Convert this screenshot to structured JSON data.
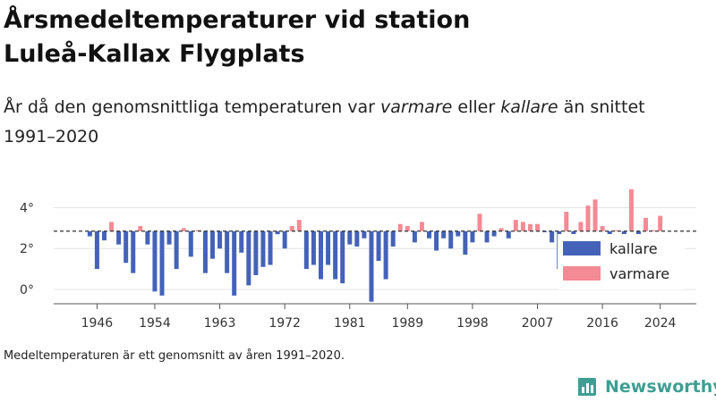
{
  "title_line1": "Årsmedeltemperaturer vid station",
  "title_line2": "Luleå-Kallax Flygplats",
  "subtitle": {
    "part1": "År då den genomsnittliga temperaturen var ",
    "em1": "varmare",
    "part2": " eller ",
    "em2": "kallare",
    "part3": " än snittet 1991–2020"
  },
  "footnote": "Medeltemperaturen är ett genomsnitt av åren 1991–2020.",
  "brand": {
    "name": "Newsworthy",
    "icon": "bar-chart-logo-icon",
    "color": "#3f9e94"
  },
  "colors": {
    "kallare": "#4462b8",
    "varmare": "#f38a94",
    "baseline": "#333333",
    "grid": "#e4e4e4"
  },
  "chart_data": {
    "type": "bar",
    "baseline": 2.85,
    "ylim": [
      -0.7,
      5.2
    ],
    "xlim": [
      1940,
      2029
    ],
    "yticks": [
      {
        "value": 0,
        "label": "0°"
      },
      {
        "value": 2,
        "label": "2°"
      },
      {
        "value": 4,
        "label": "4°"
      }
    ],
    "xticks": [
      1946,
      1954,
      1963,
      1972,
      1981,
      1989,
      1998,
      2007,
      2016,
      2024
    ],
    "grid": true,
    "legend": {
      "position": "bottom-right",
      "entries": [
        {
          "key": "kallare",
          "label": "kallare"
        },
        {
          "key": "varmare",
          "label": "varmare"
        }
      ]
    },
    "years": [
      1945,
      1946,
      1947,
      1948,
      1949,
      1950,
      1951,
      1952,
      1953,
      1954,
      1955,
      1956,
      1957,
      1958,
      1959,
      1960,
      1961,
      1962,
      1963,
      1964,
      1965,
      1966,
      1967,
      1968,
      1969,
      1970,
      1971,
      1972,
      1973,
      1974,
      1975,
      1976,
      1977,
      1978,
      1979,
      1980,
      1981,
      1982,
      1983,
      1984,
      1985,
      1986,
      1987,
      1988,
      1989,
      1990,
      1991,
      1992,
      1993,
      1994,
      1995,
      1996,
      1997,
      1998,
      1999,
      2000,
      2001,
      2002,
      2003,
      2004,
      2005,
      2006,
      2007,
      2008,
      2009,
      2010,
      2011,
      2012,
      2013,
      2014,
      2015,
      2016,
      2017,
      2018,
      2019,
      2020,
      2021,
      2022,
      2023,
      2024
    ],
    "values": [
      2.6,
      1.0,
      2.4,
      3.3,
      2.2,
      1.3,
      0.8,
      3.1,
      2.2,
      -0.1,
      -0.3,
      2.2,
      1.0,
      3.0,
      1.6,
      2.9,
      0.8,
      1.5,
      2.0,
      0.8,
      -0.3,
      1.8,
      0.2,
      0.7,
      1.1,
      1.2,
      2.7,
      2.0,
      3.1,
      3.4,
      1.0,
      1.2,
      0.5,
      1.2,
      0.5,
      0.3,
      2.2,
      2.1,
      2.5,
      -0.6,
      1.4,
      0.5,
      2.1,
      3.2,
      3.1,
      2.3,
      3.3,
      2.5,
      1.9,
      2.5,
      2.0,
      2.6,
      1.7,
      2.3,
      3.7,
      2.3,
      2.6,
      3.0,
      2.5,
      3.4,
      3.3,
      3.2,
      3.2,
      2.8,
      2.3,
      1.0,
      3.8,
      2.4,
      3.3,
      4.1,
      4.4,
      3.1,
      2.7,
      2.9,
      2.5,
      4.9,
      2.6,
      3.5,
      2.9,
      3.6
    ]
  }
}
